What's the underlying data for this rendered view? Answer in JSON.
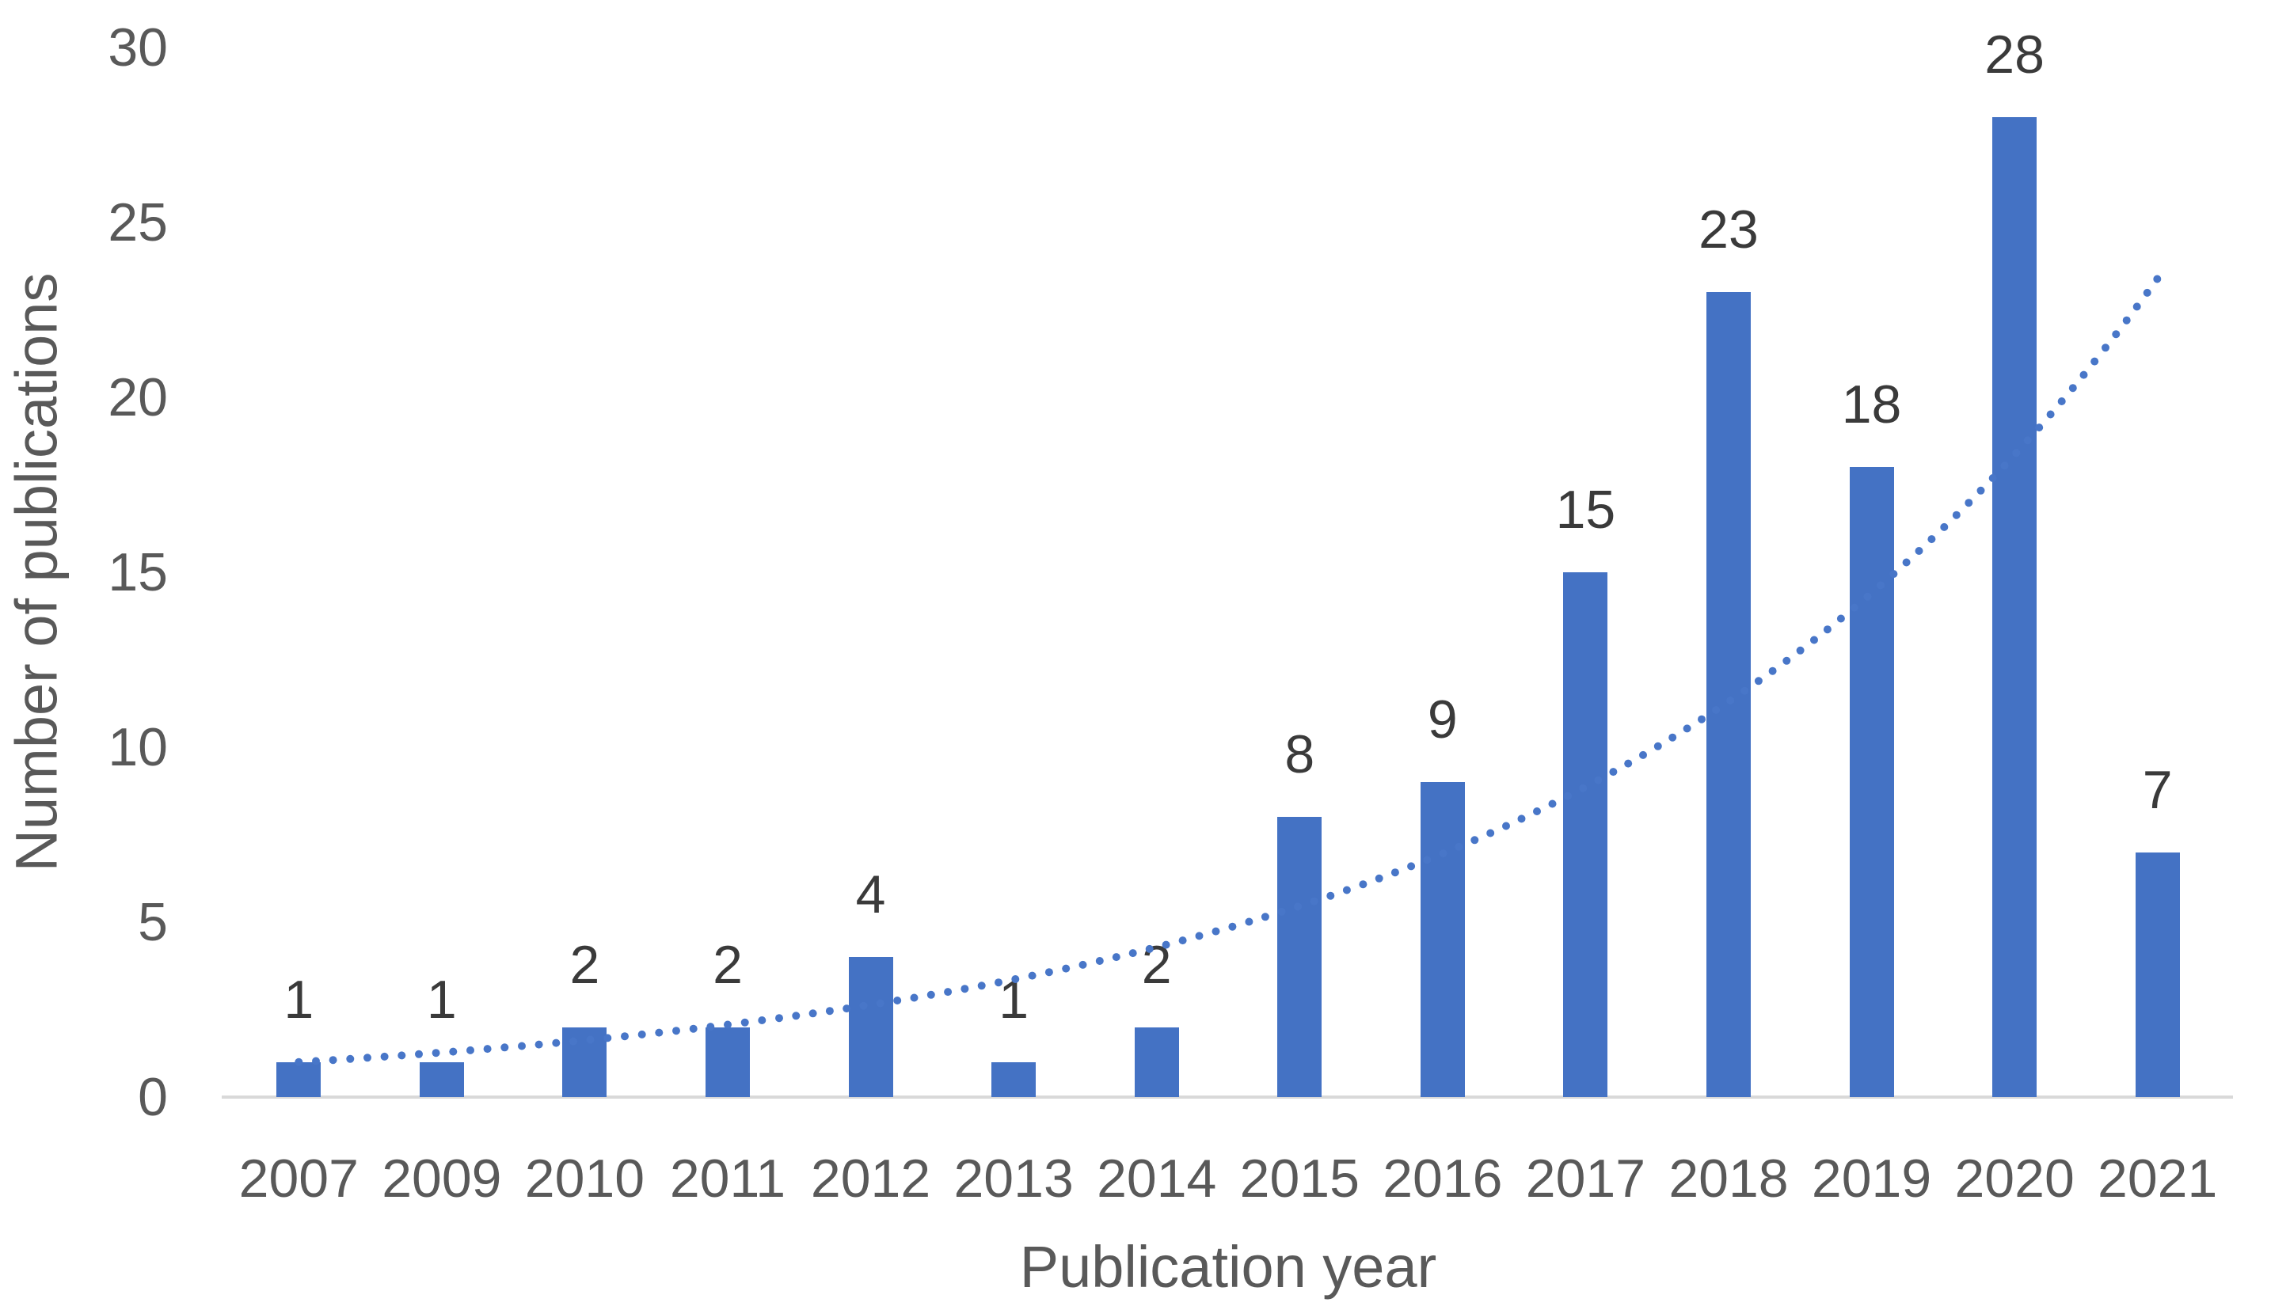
{
  "chart_data": {
    "type": "bar",
    "title": "",
    "categories": [
      "2007",
      "2009",
      "2010",
      "2011",
      "2012",
      "2013",
      "2014",
      "2015",
      "2016",
      "2017",
      "2018",
      "2019",
      "2020",
      "2021"
    ],
    "values": [
      1,
      1,
      2,
      2,
      4,
      1,
      2,
      8,
      9,
      15,
      23,
      18,
      28,
      7
    ],
    "data_labels": [
      "1",
      "1",
      "2",
      "2",
      "4",
      "1",
      "2",
      "8",
      "9",
      "15",
      "23",
      "18",
      "28",
      "7"
    ],
    "xlabel": "Publication year",
    "ylabel": "Number of publications",
    "ylim": [
      0,
      30
    ],
    "yticks": [
      "0",
      "5",
      "10",
      "15",
      "20",
      "25",
      "30"
    ],
    "grid": false,
    "legend": false,
    "bar_color": "#4472C4",
    "data_label_color": "#3A3A3A",
    "axis_text_color": "#595959",
    "axis_line_color": "#D9D9D9",
    "trendline": {
      "type": "exponential",
      "a": 1.0,
      "b": 0.2425,
      "style": "dotted",
      "color": "#4876C8",
      "x_start_index": 0,
      "x_end_index": 13
    }
  }
}
